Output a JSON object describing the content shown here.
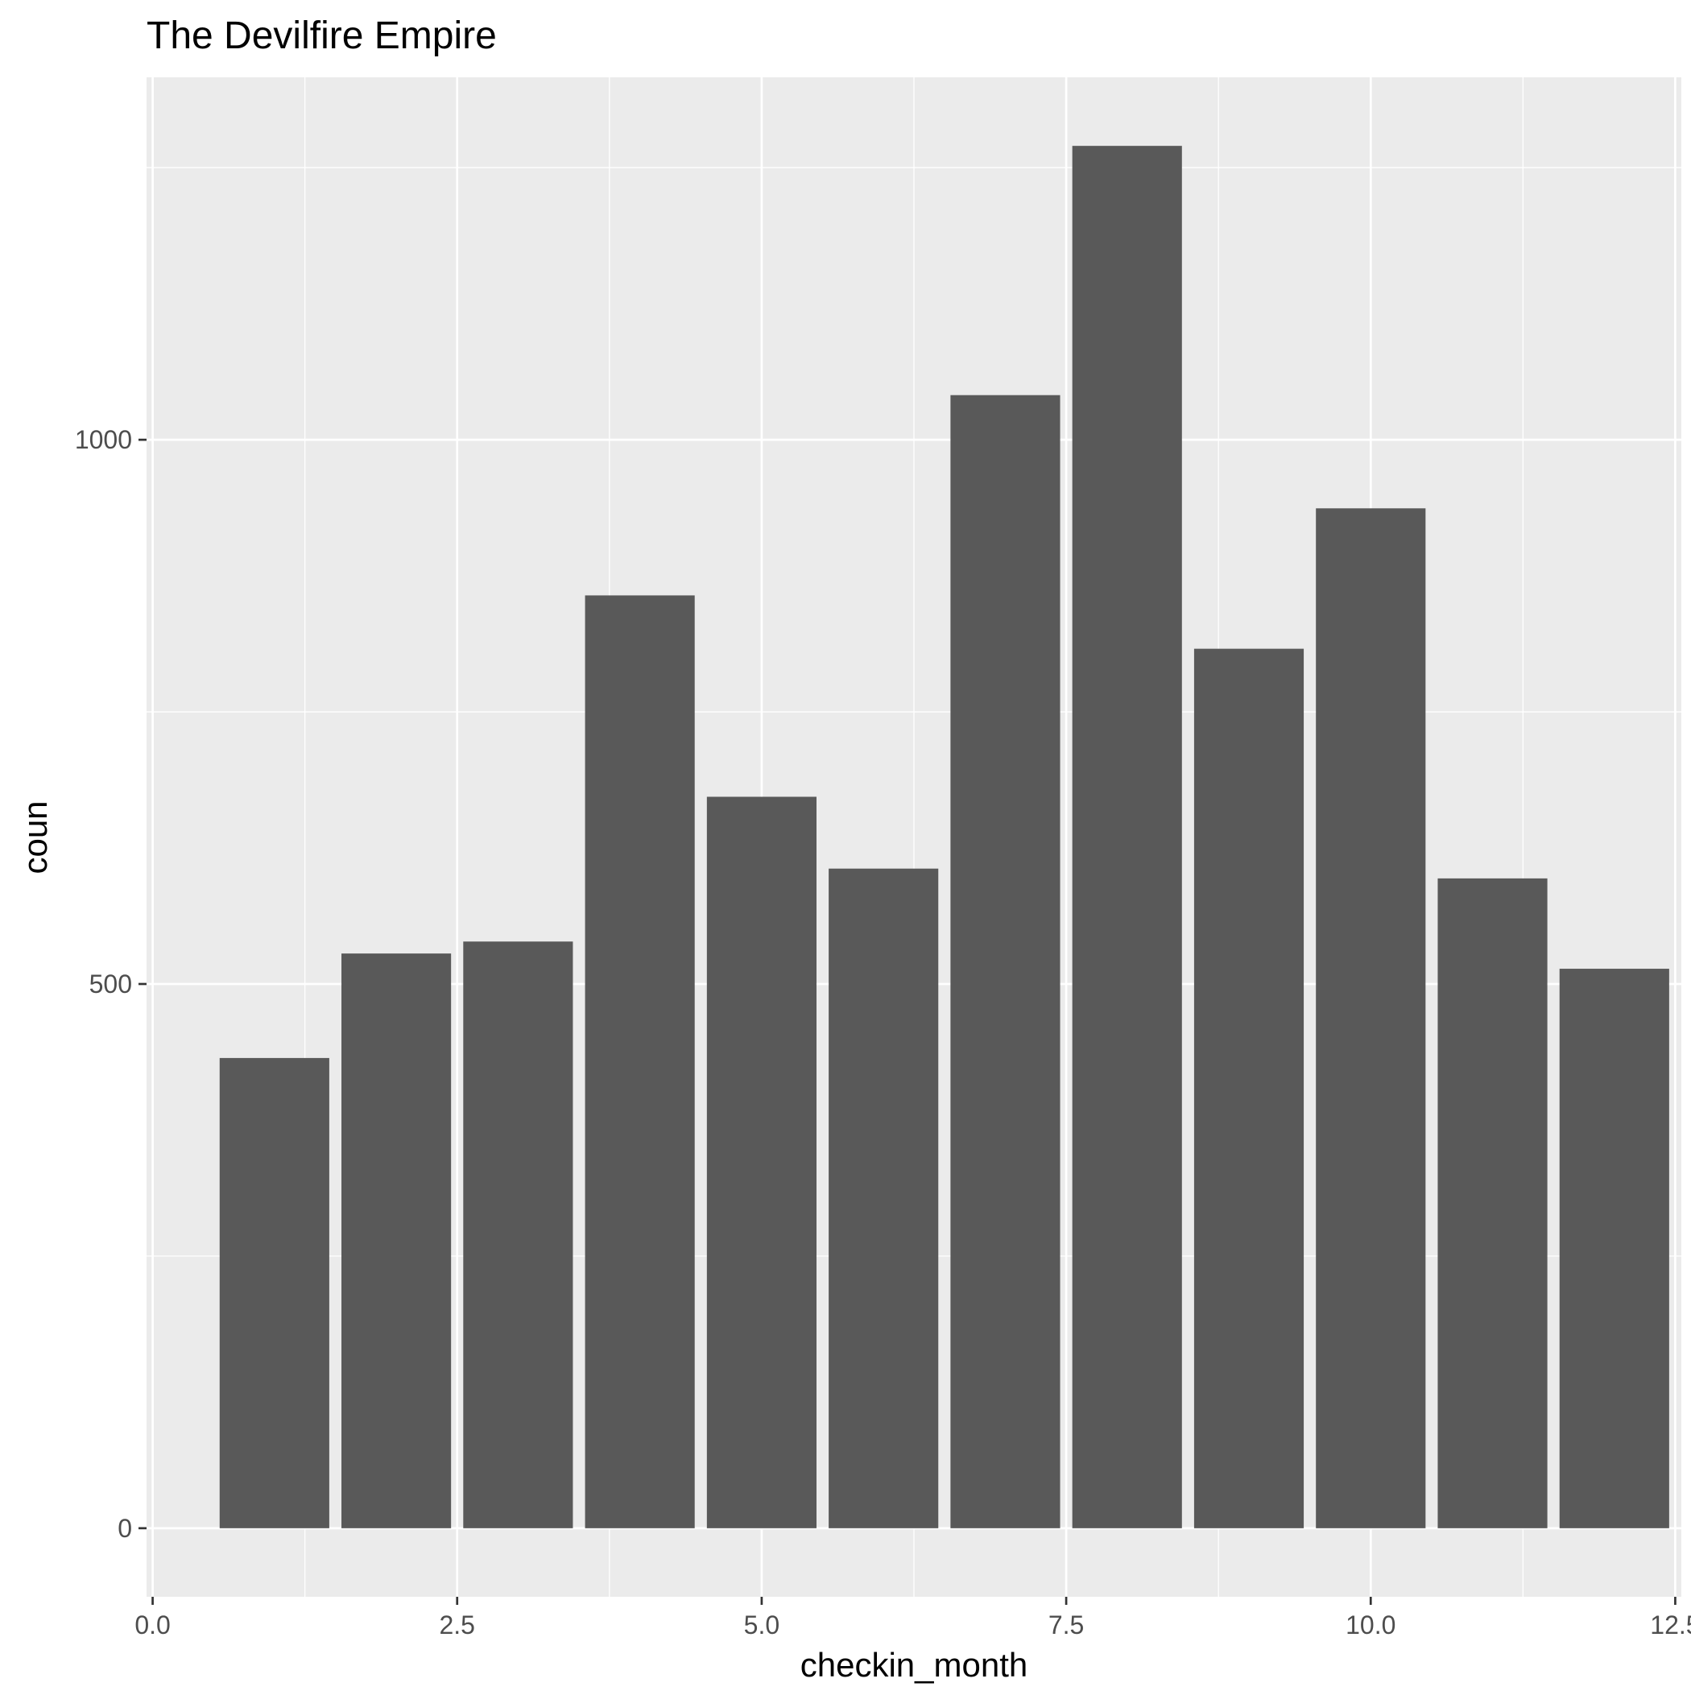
{
  "chart_data": {
    "type": "bar",
    "title": "The Devilfire Empire",
    "xlabel": "checkin_month",
    "ylabel": "coun",
    "x": [
      1,
      2,
      3,
      4,
      5,
      6,
      7,
      8,
      9,
      10,
      11,
      12
    ],
    "values": [
      432,
      528,
      539,
      857,
      672,
      606,
      1041,
      1270,
      808,
      937,
      597,
      514
    ],
    "bar_width": 0.9,
    "xlim": [
      -0.05,
      12.55
    ],
    "ylim": [
      -63,
      1333
    ],
    "x_ticks": [
      0,
      2.5,
      5,
      7.5,
      10,
      12.5
    ],
    "x_tick_labels": [
      "0.0",
      "2.5",
      "5.0",
      "7.5",
      "10.0",
      "12.5"
    ],
    "y_ticks": [
      0,
      500,
      1000
    ],
    "y_tick_labels": [
      "0",
      "500",
      "1000"
    ],
    "grid": true,
    "colors": {
      "bar": "#595959",
      "panel": "#ebebeb",
      "grid": "#ffffff"
    }
  }
}
